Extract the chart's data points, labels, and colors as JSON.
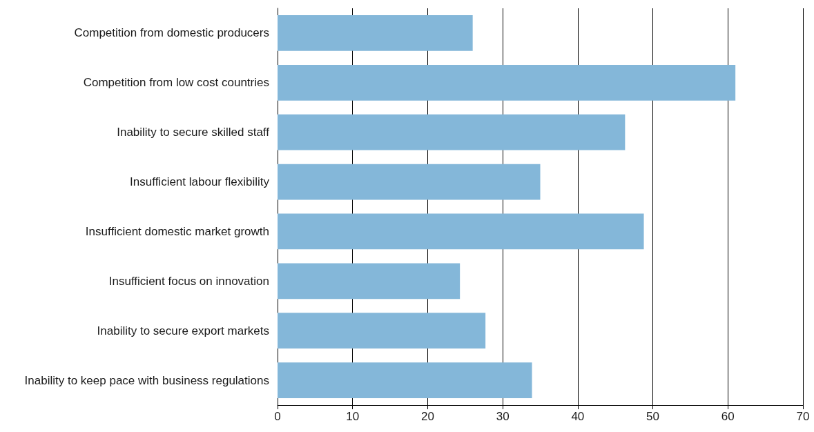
{
  "chart_data": {
    "type": "bar",
    "orientation": "horizontal",
    "categories": [
      "Competition from domestic producers",
      "Competition from low cost countries",
      "Inability to secure skilled staff",
      "Insufficient labour flexibility",
      "Insufficient domestic market growth",
      "Insufficient focus on innovation",
      "Inability to secure export markets",
      "Inability to keep pace with business regulations"
    ],
    "values": [
      26.0,
      61.0,
      46.3,
      35.0,
      48.8,
      24.3,
      27.7,
      33.9
    ],
    "color": "#84b7d9",
    "xlim": [
      0,
      70
    ],
    "xticks": [
      0,
      10,
      20,
      30,
      40,
      50,
      60,
      70
    ],
    "grid": "x"
  }
}
